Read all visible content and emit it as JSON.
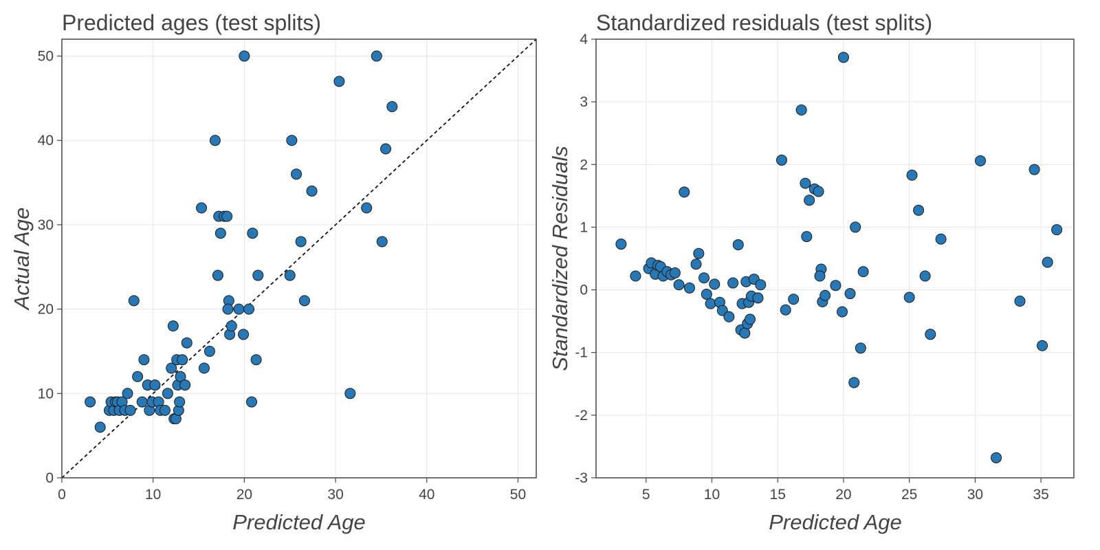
{
  "colors": {
    "marker": "#2878b5",
    "marker_edge": "#1b1b1b",
    "text": "#444444",
    "grid": "#e6e6e6"
  },
  "chart_data": [
    {
      "type": "scatter",
      "title": "Predicted ages (test splits)",
      "xlabel": "Predicted Age",
      "ylabel": "Actual Age",
      "xlim": [
        0,
        52
      ],
      "ylim": [
        0,
        52
      ],
      "xticks": [
        "0",
        "10",
        "20",
        "30",
        "40",
        "50"
      ],
      "yticks": [
        "0",
        "10",
        "20",
        "30",
        "40",
        "50"
      ],
      "grid": true,
      "reference_line": "y = x (dashed)",
      "x": [
        3.1,
        4.2,
        5.2,
        5.4,
        5.7,
        5.9,
        6.1,
        6.3,
        6.6,
        6.9,
        7.2,
        7.5,
        7.9,
        8.3,
        8.8,
        9.0,
        9.4,
        9.6,
        9.9,
        10.2,
        10.6,
        10.8,
        11.3,
        11.6,
        12.0,
        12.2,
        12.3,
        12.5,
        12.6,
        12.7,
        12.8,
        12.9,
        13.0,
        13.2,
        13.5,
        13.7,
        15.3,
        15.6,
        16.2,
        16.8,
        17.1,
        17.2,
        17.4,
        17.8,
        18.1,
        18.3,
        18.2,
        18.4,
        18.6,
        19.4,
        19.9,
        20.0,
        20.5,
        20.8,
        20.9,
        21.3,
        21.5,
        25.0,
        25.2,
        25.7,
        26.2,
        26.6,
        27.4,
        30.4,
        31.6,
        33.4,
        34.5,
        35.1,
        35.5,
        36.2
      ],
      "y": [
        9,
        6,
        8,
        9,
        8,
        9,
        9,
        8,
        9,
        8,
        10,
        8,
        21,
        12,
        9,
        14,
        11,
        8,
        9,
        11,
        9,
        8,
        8,
        10,
        13,
        18,
        7,
        7,
        14,
        11,
        8,
        9,
        12,
        14,
        11,
        16,
        32,
        13,
        15,
        40,
        24,
        31,
        29,
        31,
        31,
        21,
        20,
        17,
        18,
        20,
        17,
        50,
        20,
        9,
        29,
        14,
        24,
        24,
        40,
        36,
        28,
        21,
        34,
        47,
        10,
        32,
        50,
        28,
        39,
        44
      ]
    },
    {
      "type": "scatter",
      "title": "Standardized residuals (test splits)",
      "xlabel": "Predicted Age",
      "ylabel": "Standardized Residuals",
      "xlim": [
        1.2,
        37.5
      ],
      "ylim": [
        -3,
        4
      ],
      "xticks": [
        "5",
        "10",
        "15",
        "20",
        "25",
        "30",
        "35"
      ],
      "yticks": [
        "-3",
        "-2",
        "-1",
        "0",
        "1",
        "2",
        "3",
        "4"
      ],
      "grid": true,
      "x": [
        3.1,
        4.2,
        5.2,
        5.4,
        5.7,
        5.9,
        6.1,
        6.3,
        6.6,
        6.9,
        7.2,
        7.5,
        7.9,
        8.3,
        8.8,
        9.0,
        9.4,
        9.6,
        9.9,
        10.2,
        10.6,
        10.8,
        11.3,
        11.6,
        12.0,
        12.2,
        12.3,
        12.5,
        12.6,
        12.7,
        12.8,
        12.9,
        13.0,
        13.2,
        13.5,
        13.7,
        15.3,
        15.6,
        16.2,
        16.8,
        17.1,
        17.2,
        17.4,
        17.8,
        18.1,
        18.3,
        18.2,
        18.4,
        18.6,
        19.4,
        19.9,
        20.0,
        20.5,
        20.8,
        20.9,
        21.3,
        21.5,
        25.0,
        25.2,
        25.7,
        26.2,
        26.6,
        27.4,
        30.4,
        31.6,
        33.4,
        34.5,
        35.1,
        35.5,
        36.2
      ],
      "y": [
        0.73,
        0.22,
        0.34,
        0.43,
        0.25,
        0.39,
        0.37,
        0.22,
        0.29,
        0.24,
        0.27,
        0.08,
        1.56,
        0.03,
        0.41,
        0.58,
        0.19,
        -0.07,
        -0.22,
        0.09,
        -0.2,
        -0.33,
        -0.43,
        0.11,
        0.72,
        -0.64,
        -0.22,
        -0.69,
        0.13,
        -0.54,
        -0.2,
        -0.47,
        -0.1,
        0.17,
        -0.13,
        0.08,
        2.07,
        -0.32,
        -0.15,
        2.87,
        1.7,
        0.85,
        1.43,
        1.61,
        1.57,
        0.33,
        0.22,
        -0.19,
        -0.09,
        0.07,
        -0.35,
        3.71,
        -0.06,
        -1.48,
        1.0,
        -0.93,
        0.29,
        -0.12,
        1.83,
        1.27,
        0.22,
        -0.71,
        0.81,
        2.06,
        -2.68,
        -0.18,
        1.92,
        -0.89,
        0.44,
        0.96
      ]
    }
  ]
}
